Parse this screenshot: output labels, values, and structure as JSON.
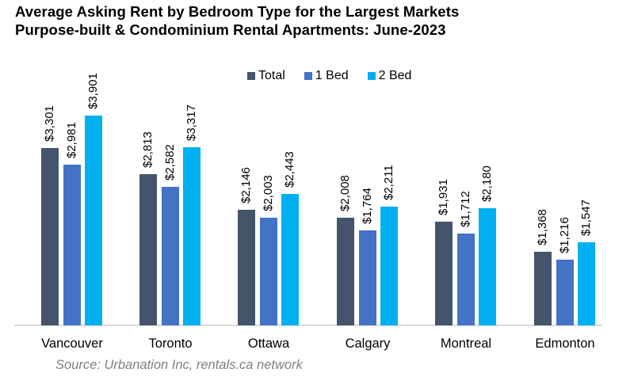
{
  "chart_data": {
    "type": "bar",
    "title": "Average Asking Rent by Bedroom Type for the Largest Markets",
    "subtitle": "Purpose-built & Condominium Rental Apartments: June-2023",
    "xlabel": "",
    "ylabel": "",
    "categories": [
      "Vancouver",
      "Toronto",
      "Ottawa",
      "Calgary",
      "Montreal",
      "Edmonton"
    ],
    "series": [
      {
        "name": "Total",
        "color": "#44546A",
        "values": [
          3301,
          2813,
          2146,
          2008,
          1931,
          1368
        ],
        "labels": [
          "$3,301",
          "$2,813",
          "$2,146",
          "$2,008",
          "$1,931",
          "$1,368"
        ]
      },
      {
        "name": "1 Bed",
        "color": "#4472C4",
        "values": [
          2981,
          2582,
          2003,
          1764,
          1712,
          1216
        ],
        "labels": [
          "$2,981",
          "$2,582",
          "$2,003",
          "$1,764",
          "$1,712",
          "$1,216"
        ]
      },
      {
        "name": "2 Bed",
        "color": "#00B0F0",
        "values": [
          3901,
          3317,
          2443,
          2211,
          2180,
          1547
        ],
        "labels": [
          "$3,901",
          "$3,317",
          "$2,443",
          "$2,211",
          "$2,180",
          "$1,547"
        ]
      }
    ],
    "legend_position": "top",
    "grid": false,
    "ylim": [
      0,
      4000
    ],
    "source": "Source: Urbanation Inc, rentals.ca network"
  }
}
